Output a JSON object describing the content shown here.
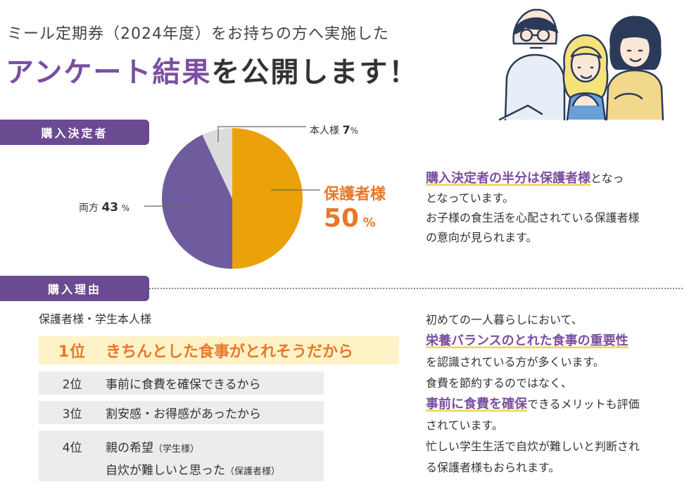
{
  "header": {
    "subtitle": "ミール定期券（2024年度）をお持ちの方へ実施した",
    "title_accent": "アンケート結果",
    "title_rest": "を公開します！"
  },
  "section1": {
    "label": "購入決定者"
  },
  "chart_data": {
    "type": "pie",
    "slices": [
      {
        "label": "保護者様",
        "value": 50,
        "color": "#eba10a"
      },
      {
        "label": "両方",
        "value": 43,
        "color": "#6e5c9e"
      },
      {
        "label": "本人様",
        "value": 7,
        "color": "#dcdcdc"
      }
    ],
    "unit": "%",
    "labels": {
      "honnin_name": "本人様",
      "honnin_value": "7",
      "ryoho_name": "両方",
      "ryoho_value": "43",
      "hogo_name": "保護者様",
      "hogo_value": "50",
      "unit": "%"
    }
  },
  "desc1": {
    "highlight": "購入決定者の半分は保護者様",
    "text1": "となっ",
    "text2": "となっています。",
    "text3": "お子様の食生活を心配されている保護者様",
    "text4": "の意向が見られます。"
  },
  "section2": {
    "label": "購入理由"
  },
  "ranking": {
    "title": "保護者様・学生本人様",
    "items": [
      {
        "rank": "1位",
        "text": "きちんとした食事がとれそうだから"
      },
      {
        "rank": "2位",
        "text": "事前に食費を確保できるから"
      },
      {
        "rank": "3位",
        "text": "割安感・お得感があったから"
      },
      {
        "rank": "4位",
        "text": "親の希望",
        "note": "（学生様）",
        "text2": "自炊が難しいと思った",
        "note2": "（保護者様）"
      }
    ]
  },
  "desc2": {
    "line1": "初めての一人暮らしにおいて、",
    "hl1": "栄養バランスのとれた食事の重要性",
    "line2": "を認識されている方が多くいます。",
    "line3": "食費を節約するのではなく、",
    "hl2": "事前に食費を確保",
    "line4a": "できるメリットも評価",
    "line4b": "されています。",
    "line5": "忙しい学生生活で自炊が難しいと判断され",
    "line6": "る保護者様もおられます。"
  },
  "colors": {
    "purple": "#6a4a91",
    "accent_purple": "#7b4fa0",
    "orange": "#e9772a",
    "pie_orange": "#eba10a",
    "pie_purple": "#6e5c9e",
    "pie_gray": "#dcdcdc",
    "highlight_yellow": "#f2d64a"
  }
}
